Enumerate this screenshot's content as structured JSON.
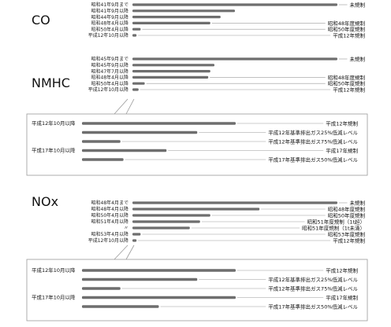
{
  "colors": {
    "bar": "#6e6e6e",
    "guide": "#9a9a9a",
    "frame": "#9a9a9a",
    "text": "#111111"
  },
  "chart_data": {
    "type": "bar",
    "title": "",
    "xlabel": "",
    "ylabel": "",
    "value_unit": "relative emission level (no-regulation = 100)",
    "groups": [
      {
        "name": "CO",
        "rows": [
          {
            "label": "昭和41年9月まで",
            "value": 100,
            "annotation": "未規制"
          },
          {
            "label": "昭和41年9月以降",
            "value": 50,
            "annotation": ""
          },
          {
            "label": "昭和44年9月以降",
            "value": 43,
            "annotation": ""
          },
          {
            "label": "昭和48年4月以降",
            "value": 38,
            "annotation": "昭和48年度規制"
          },
          {
            "label": "昭和50年4月以降",
            "value": 4,
            "annotation": "昭和50年度規制"
          },
          {
            "label": "平成12年10月以降",
            "value": 2,
            "annotation": "平成12年規制"
          }
        ]
      },
      {
        "name": "NMHC",
        "rows": [
          {
            "label": "昭和45年9月まで",
            "value": 100,
            "annotation": "未規制"
          },
          {
            "label": "昭和45年9月以降",
            "value": 40,
            "annotation": ""
          },
          {
            "label": "昭和47年7月以降",
            "value": 38,
            "annotation": ""
          },
          {
            "label": "昭和48年4月以降",
            "value": 37,
            "annotation": "昭和48年度規制"
          },
          {
            "label": "昭和50年4月以降",
            "value": 6,
            "annotation": "昭和50年度規制"
          },
          {
            "label": "平成12年10月以降",
            "value": 3,
            "annotation": "平成12年規制"
          }
        ],
        "detail": [
          {
            "label": "平成12年10月以降",
            "value": 100,
            "annotation": "平成12年規制"
          },
          {
            "label": "",
            "value": 75,
            "annotation": "平成12年基準排出ガス25%低減レベル"
          },
          {
            "label": "",
            "value": 25,
            "annotation": "平成12年基準排出ガス75%低減レベル"
          },
          {
            "label": "平成17年10月以降",
            "value": 55,
            "annotation": "平成17年規制"
          },
          {
            "label": "",
            "value": 27,
            "annotation": "平成17年基準排出ガス50%低減レベル"
          }
        ]
      },
      {
        "name": "NOx",
        "rows": [
          {
            "label": "昭和48年4月まで",
            "value": 100,
            "annotation": "未規制"
          },
          {
            "label": "昭和48年4月以降",
            "value": 62,
            "annotation": "昭和48年度規制"
          },
          {
            "label": "昭和50年4月以降",
            "value": 38,
            "annotation": "昭和50年度規制"
          },
          {
            "label": "昭和51年4月以降",
            "value": 33,
            "annotation": "昭和51年度規制（1t超）"
          },
          {
            "label": "〃",
            "value": 28,
            "annotation": "昭和51年度規制（1t未満）"
          },
          {
            "label": "昭和53年4月以降",
            "value": 4,
            "annotation": "昭和53年度規制"
          },
          {
            "label": "平成12年10月以降",
            "value": 2,
            "annotation": "平成12年規制"
          }
        ],
        "detail": [
          {
            "label": "平成12年10月以降",
            "value": 100,
            "annotation": "平成12年規制"
          },
          {
            "label": "",
            "value": 75,
            "annotation": "平成12年基準排出ガス25%低減レベル"
          },
          {
            "label": "",
            "value": 25,
            "annotation": "平成12年基準排出ガス75%低減レベル"
          },
          {
            "label": "平成17年10月以降",
            "value": 100,
            "annotation": "平成17年規制"
          },
          {
            "label": "",
            "value": 50,
            "annotation": "平成17年基準排出ガス50%低減レベル"
          }
        ]
      }
    ]
  }
}
